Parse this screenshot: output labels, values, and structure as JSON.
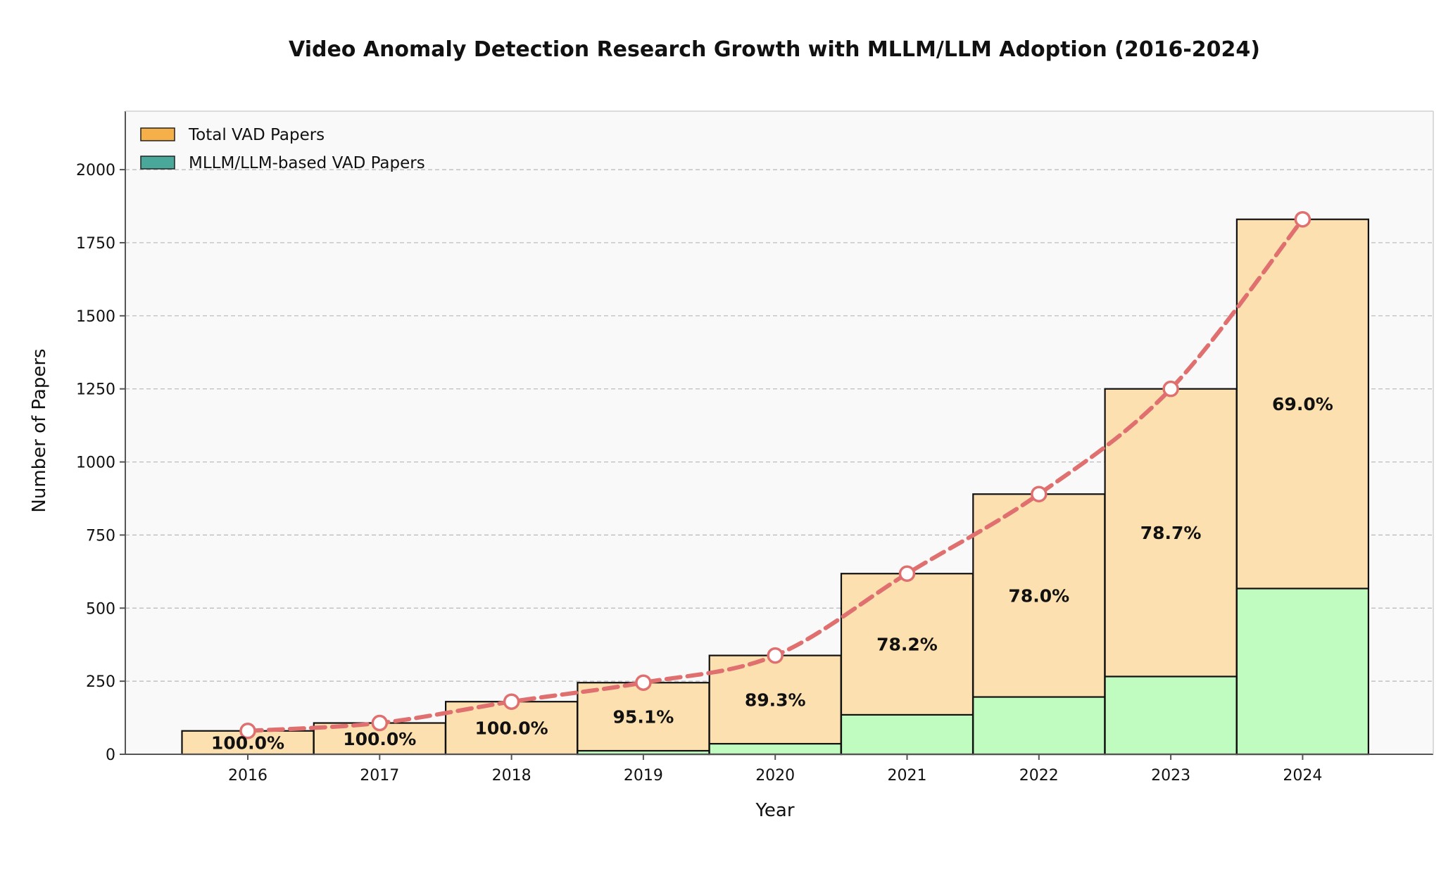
{
  "chart_data": {
    "type": "bar",
    "title": "Video Anomaly Detection Research Growth with MLLM/LLM Adoption (2016-2024)",
    "xlabel": "Year",
    "ylabel": "Number of Papers",
    "ylim": [
      0,
      2200
    ],
    "yticks": [
      0,
      250,
      500,
      750,
      1000,
      1250,
      1500,
      1750,
      2000
    ],
    "grid": true,
    "legend_position": "top-left",
    "categories": [
      "2016",
      "2017",
      "2018",
      "2019",
      "2020",
      "2021",
      "2022",
      "2023",
      "2024"
    ],
    "series": [
      {
        "name": "Total VAD Papers",
        "values": [
          80,
          107,
          180,
          245,
          338,
          618,
          890,
          1250,
          1830
        ],
        "legend_color": "#f5b04a",
        "bar_color": "#fde0b0"
      },
      {
        "name": "MLLM/LLM-based VAD Papers",
        "values": [
          0,
          0,
          0,
          12,
          36,
          135,
          196,
          266,
          567
        ],
        "legend_color": "#4aa89b",
        "bar_color": "#c0fbc0"
      }
    ],
    "data_labels": [
      "100.0%",
      "100.0%",
      "100.0%",
      "95.1%",
      "89.3%",
      "78.2%",
      "78.0%",
      "78.7%",
      "69.0%"
    ],
    "trend_line_color": "#e07070"
  }
}
